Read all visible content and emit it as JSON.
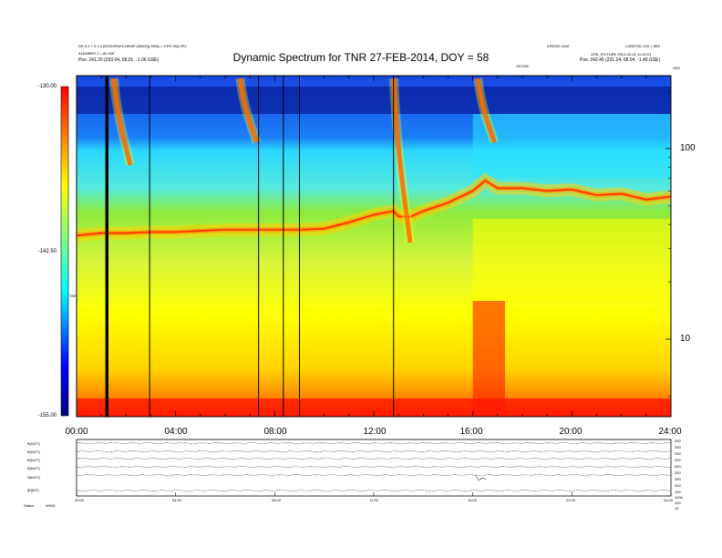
{
  "title": "Dynamic Spectrum for TNR 27-FEB-2014, DOY = 58",
  "header_left": [
    "DR 0.2 = 0.1-0 [EOOSPARCHEMP (80600)] 8SBy = 0.PE 0M] SPC",
    "ALEMBER 2 = 80.02E",
    "Pos:    241.20 (233.04, 68.01, -1.06 GSE)"
  ],
  "header_right": [
    "KREOD 2440",
    "L2EBTOD 100 = 8ED",
    "GSE_PICTURE  2014-02-01  11:43:01",
    "Pos:    242.45 (231.24, 68.04, -1.45 GSE)"
  ],
  "header_mid": "GEOSE",
  "corner_label": "SED",
  "colorbar": {
    "label": "TNR",
    "max": "-130.00",
    "mid": "-142.50",
    "min": "-155.00"
  },
  "yaxis_ticks": [
    "100",
    "10"
  ],
  "xaxis_ticks": [
    "00:00",
    "04:00",
    "08:00",
    "12:00",
    "16:00",
    "20:00",
    "24:00"
  ],
  "lower_panel": {
    "left_labels": [
      "B(NOT)",
      "B(NOT)",
      "B(NOT)",
      "B(NOT)",
      "N(NOT)",
      "|B|(NT)"
    ],
    "right_labels": [
      "250",
      "200",
      "250",
      "200",
      "250",
      "200",
      "250",
      "200",
      "100",
      "1000",
      "100",
      "10"
    ],
    "bottom_left": "Status",
    "bottom_left_code": "WIND",
    "x_ticks": [
      "00:00",
      "04:00",
      "08:00",
      "12:00",
      "16:00",
      "20:00",
      "24:00"
    ]
  },
  "chart_data": {
    "type": "heatmap",
    "title": "Dynamic Spectrum for TNR 27-FEB-2014, DOY = 58",
    "xlabel": "",
    "ylabel": "",
    "x_range_hours": [
      0,
      24
    ],
    "y_scale": "log",
    "y_ticks": [
      100,
      10
    ],
    "colorbar_range": [
      -155.0,
      -130.0
    ],
    "colorbar_ticks": [
      -130.0,
      -142.5,
      -155.0
    ],
    "colorbar_label": "TNR",
    "colormap": [
      "#000080",
      "#0000ff",
      "#00ffff",
      "#ffff00",
      "#ff0000"
    ],
    "colors": {
      "dark_blue": "#081f9e",
      "blue": "#1a4fe8",
      "cyan": "#2ae6ff",
      "green": "#8cea3c",
      "yellow": "#ffff00",
      "orange": "#ff9a00",
      "red": "#ff1a00"
    },
    "plasma_line_hours": [
      0,
      1,
      2,
      3,
      4,
      5,
      6,
      7,
      8,
      9,
      10,
      11,
      12,
      12.8,
      13,
      13.5,
      14,
      15,
      16,
      16.5,
      17,
      18,
      19,
      20,
      21,
      22,
      23,
      24
    ],
    "plasma_line_freq": [
      35,
      36,
      36,
      36.5,
      36.5,
      37,
      37.5,
      37.5,
      37.5,
      37.5,
      38,
      41,
      45,
      47,
      44,
      44,
      47,
      52,
      60,
      68,
      62,
      62,
      60,
      61,
      57,
      58,
      54,
      56
    ],
    "data_gap_hours": [
      1.2,
      1.25,
      2.95,
      7.35,
      8.35,
      9.0,
      12.8
    ],
    "burst_hours": [
      1.8,
      6.9,
      13.1,
      16.5
    ]
  }
}
